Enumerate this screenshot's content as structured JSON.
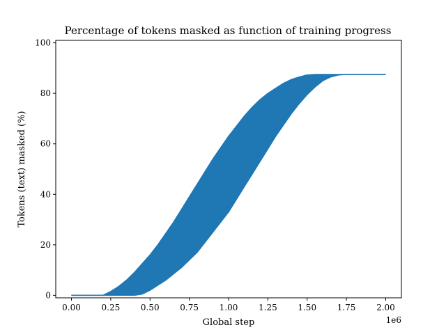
{
  "chart_data": {
    "type": "area",
    "title": "Percentage of tokens masked as function of training progress",
    "xlabel": "Global step",
    "ylabel": "Tokens (text) masked (%)",
    "x_offset_label": "1e6",
    "xlim": [
      -0.1,
      2.1
    ],
    "ylim": [
      -1,
      101
    ],
    "x_ticks": [
      0.0,
      0.25,
      0.5,
      0.75,
      1.0,
      1.25,
      1.5,
      1.75,
      2.0
    ],
    "x_tick_labels": [
      "0.00",
      "0.25",
      "0.50",
      "0.75",
      "1.00",
      "1.25",
      "1.50",
      "1.75",
      "2.00"
    ],
    "y_ticks": [
      0,
      20,
      40,
      60,
      80,
      100
    ],
    "y_tick_labels": [
      "0",
      "20",
      "40",
      "60",
      "80",
      "100"
    ],
    "grid": false,
    "legend": "none",
    "series_color": "#1f77b4",
    "series": [
      {
        "x": [
          0.0,
          0.1,
          0.2,
          0.25,
          0.3,
          0.35,
          0.4,
          0.45,
          0.5,
          0.55,
          0.6,
          0.65,
          0.7,
          0.75,
          0.8,
          0.85,
          0.9,
          0.95,
          1.0,
          1.05,
          1.1,
          1.15,
          1.2,
          1.25,
          1.3,
          1.35,
          1.4,
          1.45,
          1.5,
          1.55,
          1.6,
          1.65,
          1.7,
          1.75,
          1.8,
          1.9,
          2.0
        ],
        "lower": [
          0,
          0,
          0,
          0,
          0,
          0,
          0,
          0.5,
          2,
          4,
          6,
          8.5,
          11,
          14,
          17,
          21,
          25,
          29,
          33,
          38,
          43,
          48,
          53,
          58,
          63,
          67.5,
          72,
          76,
          79.5,
          82.5,
          85,
          86.5,
          87.3,
          87.5,
          87.5,
          87.5,
          87.5
        ],
        "upper": [
          0,
          0,
          0,
          1.5,
          3.5,
          6,
          9,
          12.5,
          16,
          20,
          24.5,
          29,
          34,
          39,
          44,
          49,
          54,
          58.5,
          63,
          67,
          71,
          74.5,
          77.5,
          80,
          82,
          84,
          85.5,
          86.5,
          87.3,
          87.5,
          87.5,
          87.5,
          87.5,
          87.5,
          87.5,
          87.5,
          87.5
        ]
      }
    ]
  }
}
